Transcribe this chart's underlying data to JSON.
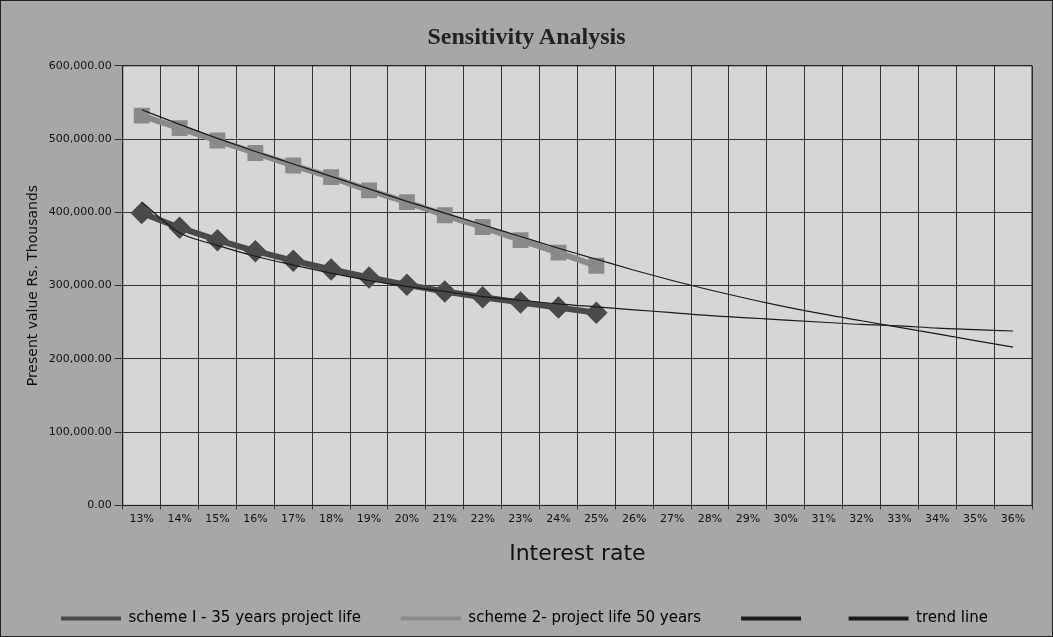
{
  "chart_data": {
    "type": "line",
    "title": "Sensitivity Analysis",
    "xlabel": "Interest rate",
    "ylabel": "Present value Rs. Thousands",
    "categories": [
      "13%",
      "14%",
      "15%",
      "16%",
      "17%",
      "18%",
      "19%",
      "20%",
      "21%",
      "22%",
      "23%",
      "24%",
      "25%",
      "26%",
      "27%",
      "28%",
      "29%",
      "30%",
      "31%",
      "32%",
      "33%",
      "34%",
      "35%",
      "36%"
    ],
    "series": [
      {
        "name": "scheme I - 35 years project life",
        "color": "#4a4a4a",
        "marker": "diamond",
        "values": [
          399000,
          379000,
          362000,
          347000,
          334000,
          322000,
          311000,
          301000,
          292000,
          284000,
          277000,
          270000,
          263000,
          null,
          null,
          null,
          null,
          null,
          null,
          null,
          null,
          null,
          null,
          null
        ]
      },
      {
        "name": "scheme 2- project life 50 years",
        "color": "#8a8a8a",
        "marker": "square",
        "values": [
          532000,
          515000,
          498000,
          481000,
          464000,
          448000,
          430000,
          414000,
          396000,
          380000,
          362000,
          345000,
          327000,
          null,
          null,
          null,
          null,
          null,
          null,
          null,
          null,
          null,
          null,
          null
        ]
      },
      {
        "color": "#1a1a1a",
        "marker": "none",
        "values": [
          540000,
          520000,
          501000,
          483000,
          466000,
          449000,
          432000,
          415000,
          399000,
          383000,
          367000,
          351000,
          336000,
          321000,
          307000,
          294000,
          282000,
          271000,
          261000,
          252000,
          243000,
          234000,
          225000,
          216000
        ]
      },
      {
        "name": "trend line",
        "color": "#1a1a1a",
        "marker": "none",
        "values": [
          414000,
          372000,
          355000,
          340000,
          328000,
          317000,
          307000,
          299000,
          292000,
          285000,
          280000,
          275000,
          271000,
          267000,
          263000,
          259000,
          256000,
          253000,
          250000,
          247000,
          245000,
          242000,
          240000,
          238000
        ]
      }
    ],
    "ylim": [
      0,
      600000
    ],
    "yticks": [
      {
        "value": 0,
        "label": "0.00"
      },
      {
        "value": 100000,
        "label": "100,000.00"
      },
      {
        "value": 200000,
        "label": "200,000.00"
      },
      {
        "value": 300000,
        "label": "300,000.00"
      },
      {
        "value": 400000,
        "label": "400,000.00"
      },
      {
        "value": 500000,
        "label": "500,000.00"
      },
      {
        "value": 600000,
        "label": "600,000.00"
      }
    ],
    "grid": true,
    "legend": "bottom",
    "line_style": "solid"
  }
}
